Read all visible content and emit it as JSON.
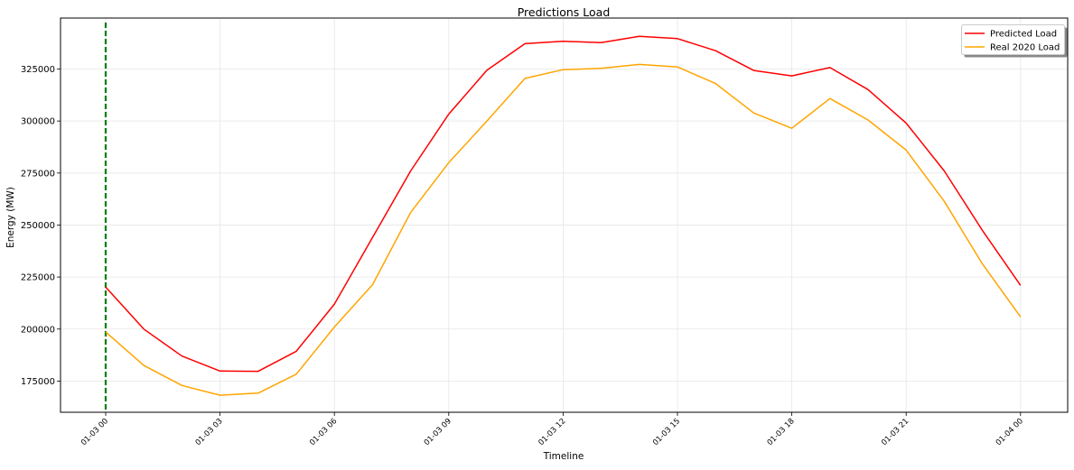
{
  "chart_data": {
    "type": "line",
    "title": "Predictions Load",
    "xlabel": "Timeline",
    "ylabel": "Energy (MW)",
    "x": [
      "2020-01-03 00:00",
      "2020-01-03 01:00",
      "2020-01-03 02:00",
      "2020-01-03 03:00",
      "2020-01-03 04:00",
      "2020-01-03 05:00",
      "2020-01-03 06:00",
      "2020-01-03 07:00",
      "2020-01-03 08:00",
      "2020-01-03 09:00",
      "2020-01-03 10:00",
      "2020-01-03 11:00",
      "2020-01-03 12:00",
      "2020-01-03 13:00",
      "2020-01-03 14:00",
      "2020-01-03 15:00",
      "2020-01-03 16:00",
      "2020-01-03 17:00",
      "2020-01-03 18:00",
      "2020-01-03 19:00",
      "2020-01-03 20:00",
      "2020-01-03 21:00",
      "2020-01-03 22:00",
      "2020-01-03 23:00",
      "2020-01-04 00:00"
    ],
    "series": [
      {
        "name": "Predicted Load",
        "color": "#ff0000",
        "values": [
          220200,
          200000,
          187000,
          179800,
          179700,
          189300,
          212000,
          244000,
          276000,
          303300,
          324400,
          337200,
          338300,
          337700,
          340700,
          339600,
          333800,
          324300,
          321700,
          325700,
          315100,
          299000,
          276000,
          247400,
          221000
        ]
      },
      {
        "name": "Real 2020 Load",
        "color": "#ffa500",
        "values": [
          198600,
          182500,
          172900,
          168200,
          169200,
          178300,
          201000,
          221300,
          256000,
          280000,
          300000,
          320500,
          324700,
          325300,
          327200,
          326000,
          318000,
          303900,
          296500,
          310800,
          300500,
          286000,
          261400,
          231300,
          205900
        ]
      }
    ],
    "x_tick_labels": [
      "01-03 00",
      "01-03 03",
      "01-03 06",
      "01-03 09",
      "01-03 12",
      "01-03 15",
      "01-03 18",
      "01-03 21",
      "01-04 00"
    ],
    "x_tick_indices": [
      0,
      3,
      6,
      9,
      12,
      15,
      18,
      21,
      24
    ],
    "y_ticks": [
      175000,
      200000,
      225000,
      250000,
      275000,
      300000,
      325000
    ],
    "y_tick_labels": [
      "175000",
      "200000",
      "225000",
      "250000",
      "275000",
      "300000",
      "325000"
    ],
    "ylim": [
      160000,
      349500
    ],
    "vertical_marker": {
      "x": "2020-01-03 00:00",
      "color": "#008000",
      "style": "dashed"
    },
    "grid": true,
    "legend_position": "top-right"
  }
}
